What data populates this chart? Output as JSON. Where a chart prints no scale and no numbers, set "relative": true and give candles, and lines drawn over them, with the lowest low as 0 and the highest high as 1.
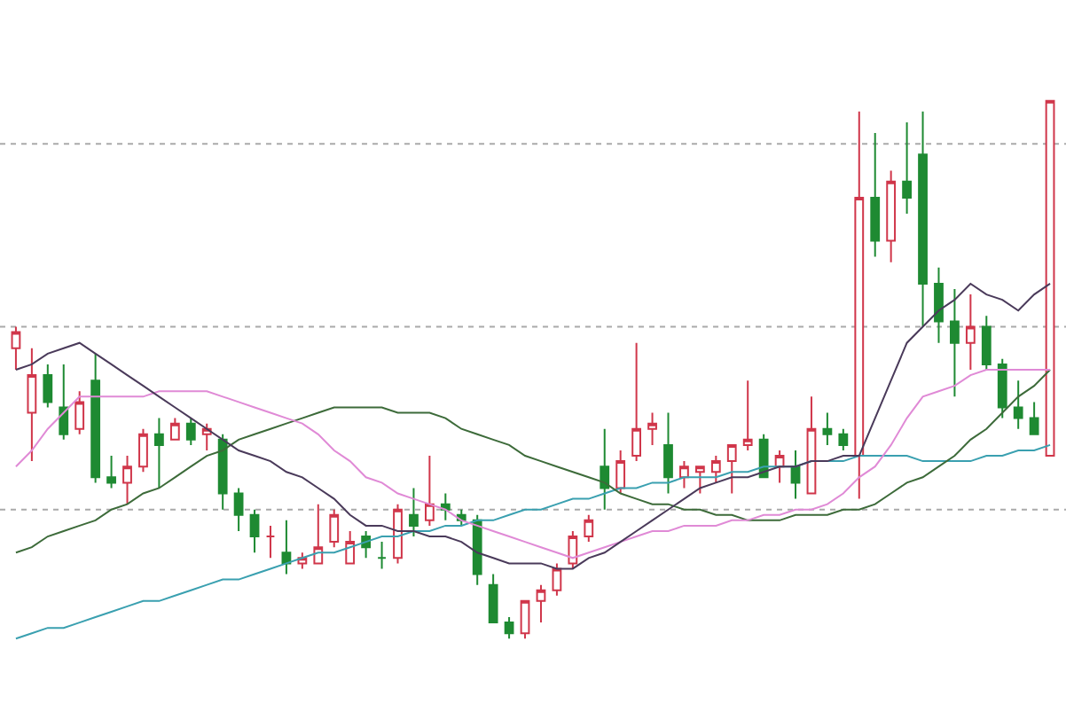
{
  "chart_data": {
    "type": "candlestick",
    "relative": true,
    "ref_lines": [
      {
        "axis": "y",
        "value": 0.92,
        "color": "#aaaaaa",
        "line_style": "dotted"
      },
      {
        "axis": "y",
        "value": 0.58,
        "color": "#aaaaaa",
        "line_style": "dotted"
      },
      {
        "axis": "y",
        "value": 0.24,
        "color": "#aaaaaa",
        "line_style": "dotted"
      }
    ],
    "categories": [
      null,
      null,
      null,
      null,
      null,
      null,
      null,
      null,
      null,
      null,
      null,
      null,
      null,
      null,
      null,
      null,
      null,
      null,
      null,
      null,
      null,
      null,
      null,
      null,
      null,
      null,
      null,
      null,
      null,
      null,
      null,
      null,
      null,
      null,
      null,
      null,
      null,
      null,
      null,
      null,
      null,
      null,
      null,
      null,
      null,
      null,
      null,
      null,
      null,
      null,
      null,
      null,
      null,
      null,
      null,
      null,
      null,
      null,
      null,
      null,
      null,
      null,
      null,
      null,
      null,
      null
    ],
    "colors": [
      "#d0364a",
      "#d0364a",
      "#1e8a32",
      "#1e8a32",
      "#d0364a",
      "#1e8a32",
      "#1e8a32",
      "#d0364a",
      "#d0364a",
      "#1e8a32",
      "#d0364a",
      "#1e8a32",
      "#d0364a",
      "#1e8a32",
      "#1e8a32",
      "#1e8a32",
      "#d0364a",
      "#1e8a32",
      "#d0364a",
      "#d0364a",
      "#d0364a",
      "#d0364a",
      "#1e8a32",
      "#1e8a32",
      "#d0364a",
      "#1e8a32",
      "#d0364a",
      "#1e8a32",
      "#1e8a32",
      "#1e8a32",
      "#1e8a32",
      "#1e8a32",
      "#d0364a",
      "#d0364a",
      "#d0364a",
      "#d0364a",
      "#d0364a",
      "#1e8a32",
      "#d0364a",
      "#d0364a",
      "#d0364a",
      "#1e8a32",
      "#d0364a",
      "#d0364a",
      "#d0364a",
      "#d0364a",
      "#d0364a",
      "#1e8a32",
      "#d0364a",
      "#1e8a32",
      "#d0364a",
      "#1e8a32",
      "#1e8a32",
      "#d0364a",
      "#1e8a32",
      "#d0364a",
      "#1e8a32",
      "#1e8a32",
      "#1e8a32",
      "#1e8a32",
      "#d0364a",
      "#1e8a32",
      "#1e8a32",
      "#1e8a32",
      "#1e8a32",
      "#d0364a"
    ],
    "ohlc": [
      [
        0.54,
        0.58,
        0.5,
        0.57
      ],
      [
        0.42,
        0.54,
        0.33,
        0.49
      ],
      [
        0.49,
        0.51,
        0.43,
        0.44
      ],
      [
        0.43,
        0.51,
        0.37,
        0.38
      ],
      [
        0.39,
        0.46,
        0.38,
        0.44
      ],
      [
        0.48,
        0.53,
        0.29,
        0.3
      ],
      [
        0.3,
        0.34,
        0.28,
        0.29
      ],
      [
        0.29,
        0.34,
        0.25,
        0.32
      ],
      [
        0.32,
        0.39,
        0.31,
        0.38
      ],
      [
        0.38,
        0.41,
        0.28,
        0.36
      ],
      [
        0.37,
        0.41,
        0.37,
        0.4
      ],
      [
        0.4,
        0.41,
        0.36,
        0.37
      ],
      [
        0.38,
        0.4,
        0.35,
        0.39
      ],
      [
        0.37,
        0.38,
        0.24,
        0.27
      ],
      [
        0.27,
        0.28,
        0.2,
        0.23
      ],
      [
        0.23,
        0.24,
        0.16,
        0.19
      ],
      [
        0.19,
        0.21,
        0.15,
        0.19
      ],
      [
        0.16,
        0.22,
        0.12,
        0.14
      ],
      [
        0.14,
        0.16,
        0.13,
        0.15
      ],
      [
        0.14,
        0.25,
        0.14,
        0.17
      ],
      [
        0.18,
        0.24,
        0.17,
        0.23
      ],
      [
        0.14,
        0.2,
        0.14,
        0.18
      ],
      [
        0.19,
        0.2,
        0.15,
        0.17
      ],
      [
        0.15,
        0.18,
        0.13,
        0.15
      ],
      [
        0.15,
        0.25,
        0.14,
        0.24
      ],
      [
        0.23,
        0.28,
        0.19,
        0.21
      ],
      [
        0.22,
        0.34,
        0.21,
        0.25
      ],
      [
        0.25,
        0.27,
        0.22,
        0.24
      ],
      [
        0.23,
        0.24,
        0.21,
        0.22
      ],
      [
        0.22,
        0.23,
        0.1,
        0.12
      ],
      [
        0.1,
        0.12,
        0.03,
        0.03
      ],
      [
        0.03,
        0.04,
        0.0,
        0.01
      ],
      [
        0.01,
        0.07,
        0.0,
        0.07
      ],
      [
        0.07,
        0.1,
        0.03,
        0.09
      ],
      [
        0.09,
        0.14,
        0.08,
        0.13
      ],
      [
        0.14,
        0.2,
        0.13,
        0.19
      ],
      [
        0.19,
        0.23,
        0.18,
        0.22
      ],
      [
        0.32,
        0.39,
        0.24,
        0.28
      ],
      [
        0.28,
        0.35,
        0.27,
        0.33
      ],
      [
        0.34,
        0.55,
        0.33,
        0.39
      ],
      [
        0.39,
        0.42,
        0.36,
        0.4
      ],
      [
        0.36,
        0.42,
        0.27,
        0.3
      ],
      [
        0.3,
        0.33,
        0.28,
        0.32
      ],
      [
        0.31,
        0.32,
        0.27,
        0.32
      ],
      [
        0.31,
        0.34,
        0.29,
        0.33
      ],
      [
        0.33,
        0.36,
        0.27,
        0.36
      ],
      [
        0.36,
        0.48,
        0.35,
        0.37
      ],
      [
        0.37,
        0.38,
        0.3,
        0.3
      ],
      [
        0.32,
        0.35,
        0.29,
        0.34
      ],
      [
        0.32,
        0.35,
        0.26,
        0.29
      ],
      [
        0.27,
        0.45,
        0.27,
        0.39
      ],
      [
        0.39,
        0.42,
        0.36,
        0.38
      ],
      [
        0.38,
        0.39,
        0.35,
        0.36
      ],
      [
        0.34,
        0.98,
        0.26,
        0.82
      ],
      [
        0.82,
        0.94,
        0.71,
        0.74
      ],
      [
        0.74,
        0.87,
        0.7,
        0.85
      ],
      [
        0.85,
        0.96,
        0.79,
        0.82
      ],
      [
        0.9,
        0.98,
        0.58,
        0.66
      ],
      [
        0.66,
        0.69,
        0.55,
        0.59
      ],
      [
        0.59,
        0.65,
        0.45,
        0.55
      ],
      [
        0.55,
        0.64,
        0.5,
        0.58
      ],
      [
        0.58,
        0.6,
        0.5,
        0.51
      ],
      [
        0.51,
        0.52,
        0.41,
        0.43
      ],
      [
        0.43,
        0.48,
        0.39,
        0.41
      ],
      [
        0.41,
        0.44,
        0.38,
        0.38
      ],
      [
        0.34,
        1.0,
        0.34,
        1.0
      ]
    ],
    "series": [
      {
        "type": "line",
        "color": "#3aa0b0",
        "values": [
          0.0,
          0.01,
          0.02,
          0.02,
          0.03,
          0.04,
          0.05,
          0.06,
          0.07,
          0.07,
          0.08,
          0.09,
          0.1,
          0.11,
          0.11,
          0.12,
          0.13,
          0.14,
          0.15,
          0.16,
          0.16,
          0.17,
          0.18,
          0.19,
          0.19,
          0.2,
          0.2,
          0.21,
          0.21,
          0.22,
          0.22,
          0.23,
          0.24,
          0.24,
          0.25,
          0.26,
          0.26,
          0.27,
          0.28,
          0.28,
          0.29,
          0.29,
          0.3,
          0.3,
          0.3,
          0.31,
          0.31,
          0.32,
          0.32,
          0.32,
          0.33,
          0.33,
          0.33,
          0.34,
          0.34,
          0.34,
          0.34,
          0.33,
          0.33,
          0.33,
          0.33,
          0.34,
          0.34,
          0.35,
          0.35,
          0.36
        ]
      },
      {
        "type": "line",
        "color": "#3d6b3a",
        "values": [
          0.16,
          0.17,
          0.19,
          0.2,
          0.21,
          0.22,
          0.24,
          0.25,
          0.27,
          0.28,
          0.3,
          0.32,
          0.34,
          0.35,
          0.37,
          0.38,
          0.39,
          0.4,
          0.41,
          0.42,
          0.43,
          0.43,
          0.43,
          0.43,
          0.42,
          0.42,
          0.42,
          0.41,
          0.39,
          0.38,
          0.37,
          0.36,
          0.34,
          0.33,
          0.32,
          0.31,
          0.3,
          0.29,
          0.27,
          0.26,
          0.25,
          0.25,
          0.24,
          0.24,
          0.23,
          0.23,
          0.22,
          0.22,
          0.22,
          0.23,
          0.23,
          0.23,
          0.24,
          0.24,
          0.25,
          0.27,
          0.29,
          0.3,
          0.32,
          0.34,
          0.37,
          0.39,
          0.42,
          0.45,
          0.47,
          0.5
        ]
      },
      {
        "type": "line",
        "color": "#e08ad6",
        "values": [
          0.32,
          0.35,
          0.39,
          0.42,
          0.45,
          0.45,
          0.45,
          0.45,
          0.45,
          0.46,
          0.46,
          0.46,
          0.46,
          0.45,
          0.44,
          0.43,
          0.42,
          0.41,
          0.4,
          0.38,
          0.35,
          0.33,
          0.3,
          0.29,
          0.27,
          0.26,
          0.25,
          0.24,
          0.22,
          0.21,
          0.2,
          0.19,
          0.18,
          0.17,
          0.16,
          0.15,
          0.16,
          0.17,
          0.18,
          0.19,
          0.2,
          0.2,
          0.21,
          0.21,
          0.21,
          0.22,
          0.22,
          0.23,
          0.23,
          0.24,
          0.24,
          0.25,
          0.27,
          0.3,
          0.32,
          0.36,
          0.41,
          0.45,
          0.46,
          0.47,
          0.49,
          0.5,
          0.5,
          0.5,
          0.5,
          0.5
        ]
      },
      {
        "type": "line",
        "color": "#4a3a5a",
        "values": [
          0.5,
          0.51,
          0.53,
          0.54,
          0.55,
          0.53,
          0.51,
          0.49,
          0.47,
          0.45,
          0.43,
          0.41,
          0.39,
          0.37,
          0.35,
          0.34,
          0.33,
          0.31,
          0.3,
          0.28,
          0.26,
          0.23,
          0.21,
          0.21,
          0.2,
          0.2,
          0.19,
          0.19,
          0.18,
          0.16,
          0.15,
          0.14,
          0.14,
          0.14,
          0.13,
          0.13,
          0.15,
          0.16,
          0.18,
          0.2,
          0.22,
          0.24,
          0.26,
          0.28,
          0.29,
          0.3,
          0.3,
          0.31,
          0.32,
          0.32,
          0.33,
          0.33,
          0.34,
          0.34,
          0.41,
          0.48,
          0.55,
          0.58,
          0.61,
          0.63,
          0.66,
          0.64,
          0.63,
          0.61,
          0.64,
          0.66
        ]
      }
    ]
  }
}
